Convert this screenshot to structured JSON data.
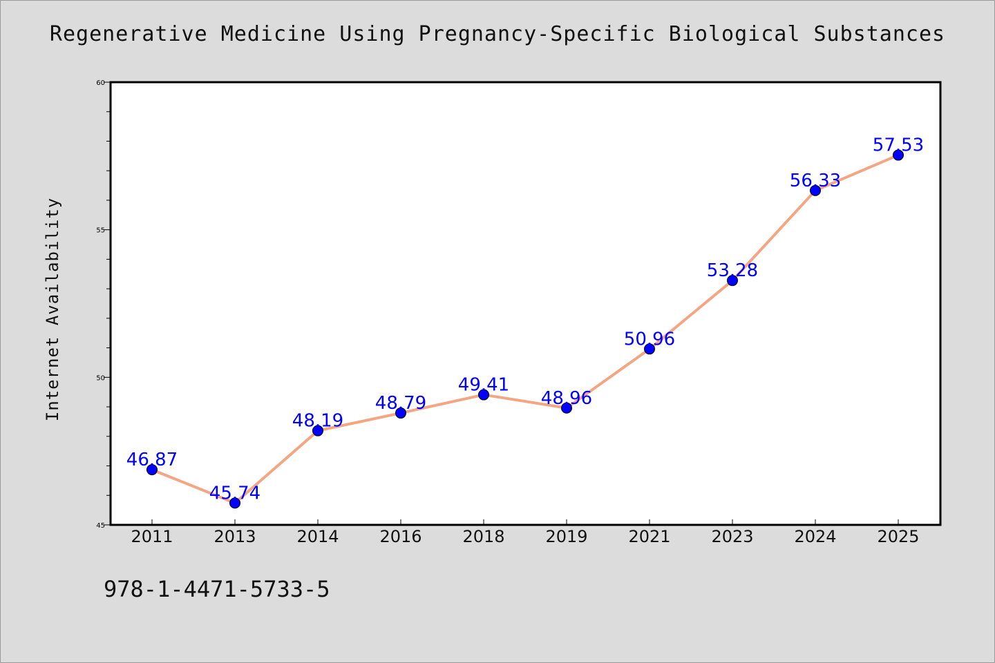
{
  "chart_data": {
    "type": "line",
    "title": "Regenerative Medicine Using Pregnancy-Specific Biological Substances",
    "xlabel": "",
    "ylabel": "Internet Availability",
    "categories": [
      "2011",
      "2013",
      "2014",
      "2016",
      "2018",
      "2019",
      "2021",
      "2023",
      "2024",
      "2025"
    ],
    "series": [
      {
        "values": [
          46.87,
          45.74,
          48.19,
          48.79,
          49.41,
          48.96,
          50.96,
          53.28,
          56.33,
          57.53
        ]
      }
    ],
    "data_labels": [
      "46.87",
      "45.74",
      "48.19",
      "48.79",
      "49.41",
      "48.96",
      "50.96",
      "53.28",
      "56.33",
      "57.53"
    ],
    "ylim": [
      45,
      60
    ],
    "yticks": [
      45,
      50,
      55,
      60
    ],
    "ytick_labels": [
      "45",
      "50",
      "55",
      "60"
    ],
    "grid": false,
    "line_color": "#f4a582",
    "marker_color": "#0000ff",
    "label_color": "#0000ff"
  },
  "footer": {
    "isbn": "978-1-4471-5733-5"
  }
}
